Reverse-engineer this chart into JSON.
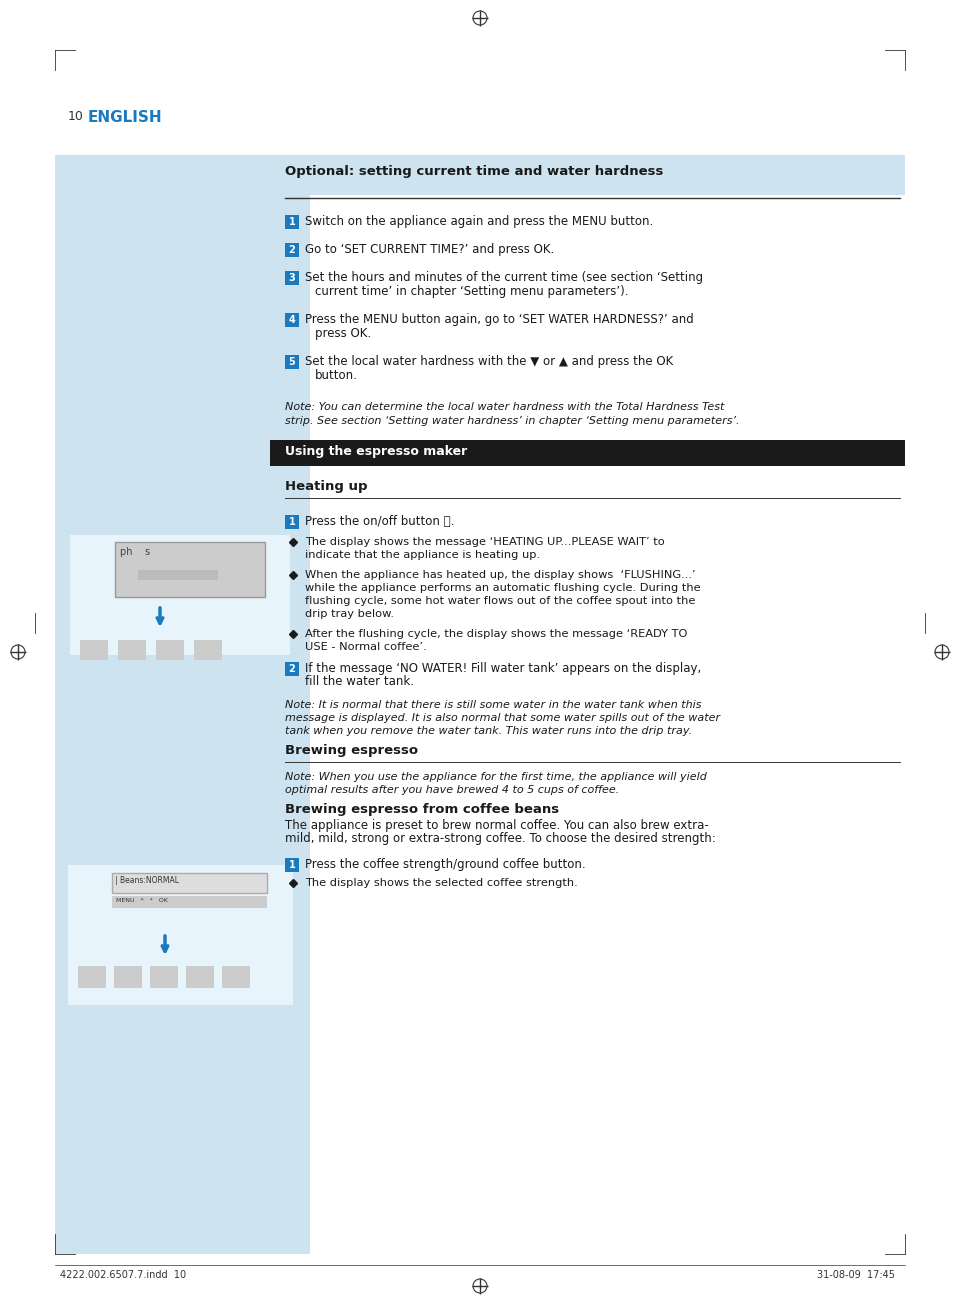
{
  "bg_color": "#ffffff",
  "page_bg": "#ffffff",
  "left_panel_color": "#cde4f0",
  "right_panel_color": "#daeef7",
  "page_number": "10",
  "page_label": "ENGLISH",
  "page_label_color": "#1a7abf",
  "footer_left": "4222.002.6507.7.indd  10",
  "footer_right": "31-08-09  17:45",
  "section1_title": "Optional: setting current time and water hardness",
  "dark_header_text": "Using the espresso maker",
  "dark_header_bg": "#1a1a1a",
  "section2_title": "Heating up",
  "section3_title": "Brewing espresso",
  "section4_title": "Brewing espresso from coffee beans",
  "section4_subtitle": "The appliance is preset to brew normal coffee. You can also brew extra-\nmild, mild, strong or extra-strong coffee. To choose the desired strength:",
  "num_badge_color": "#1a7abf",
  "bullet_color": "#1a1a1a",
  "steps_section1": [
    {
      "num": "1",
      "text": "Switch on the appliance again and press the MENU button."
    },
    {
      "num": "2",
      "text": "Go to ‘SET CURRENT TIME?’ and press OK."
    },
    {
      "num": "3",
      "text": "Set the hours and minutes of the current time (see section ‘Setting\ncurrent time’ in chapter ‘Setting menu parameters’)."
    },
    {
      "num": "4",
      "text": "Press the MENU button again, go to ‘SET WATER HARDNESS?’ and\npress OK."
    },
    {
      "num": "5",
      "text": "Set the local water hardness with the ▼ or ▲ and press the OK\nbutton."
    }
  ],
  "note1": "Note: You can determine the local water hardness with the Total Hardness Test\nstrip. See section ‘Setting water hardness’ in chapter ‘Setting menu parameters’.",
  "steps_section2": [
    {
      "num": "1",
      "text": "Press the on/off button ⏻."
    }
  ],
  "bullets_section2": [
    "The display shows the message ‘HEATING UP...PLEASE WAIT’ to\nindicate that the appliance is heating up.",
    "When the appliance has heated up, the display shows  ‘FLUSHING...’\nwhile the appliance performs an automatic flushing cycle. During the\nflushing cycle, some hot water flows out of the coffee spout into the\ndrip tray below.",
    "After the flushing cycle, the display shows the message ‘READY TO\nUSE - Normal coffee’."
  ],
  "steps_section2b": [
    {
      "num": "2",
      "text": "If the message ‘NO WATER! Fill water tank’ appears on the display,\nfill the water tank."
    }
  ],
  "note2": "Note: It is normal that there is still some water in the water tank when this\nmessage is displayed. It is also normal that some water spills out of the water\ntank when you remove the water tank. This water runs into the drip tray.",
  "note3": "Note: When you use the appliance for the first time, the appliance will yield\noptimal results after you have brewed 4 to 5 cups of coffee.",
  "steps_section4": [
    {
      "num": "1",
      "text": "Press the coffee strength/ground coffee button."
    }
  ],
  "bullets_section4": [
    "The display shows the selected coffee strength."
  ]
}
